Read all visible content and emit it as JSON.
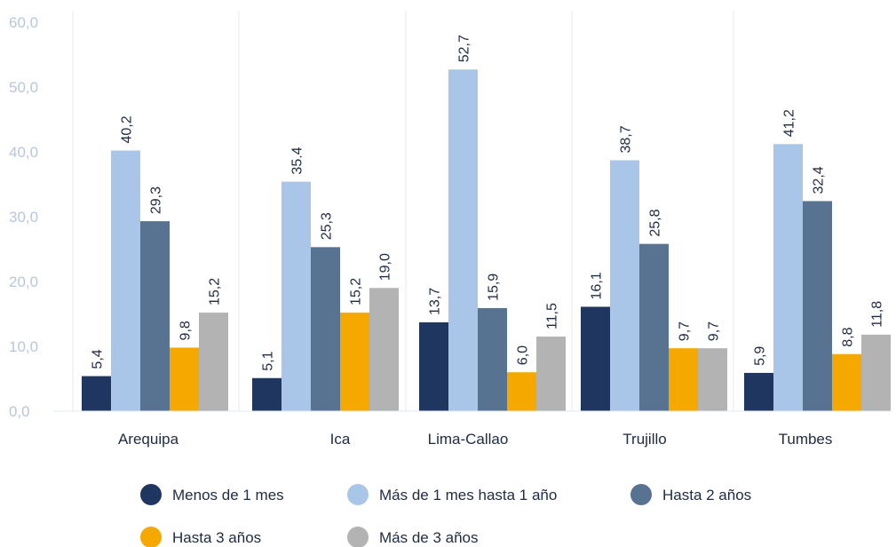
{
  "chart_data": {
    "type": "bar",
    "title": "",
    "xlabel": "",
    "ylabel": "",
    "ylim": [
      0,
      60
    ],
    "yticks": [
      "0,0",
      "10,0",
      "20,0",
      "30,0",
      "40,0",
      "50,0",
      "60,0"
    ],
    "categories": [
      "Arequipa",
      "Ica",
      "Lima-Callao",
      "Trujillo",
      "Tumbes"
    ],
    "series": [
      {
        "name": "Menos de 1 mes",
        "color": "#1f3660",
        "values": [
          5.4,
          5.1,
          13.7,
          16.1,
          5.9
        ],
        "labels": [
          "5,4",
          "5,1",
          "13,7",
          "16,1",
          "5,9"
        ]
      },
      {
        "name": "Más de 1 mes hasta 1 año",
        "color": "#a9c6e8",
        "values": [
          40.2,
          35.4,
          52.7,
          38.7,
          41.2
        ],
        "labels": [
          "40,2",
          "35.4",
          "52,7",
          "38,7",
          "41,2"
        ]
      },
      {
        "name": "Hasta 2 años",
        "color": "#587391",
        "values": [
          29.3,
          25.3,
          15.9,
          25.8,
          32.4
        ],
        "labels": [
          "29,3",
          "25,3",
          "15,9",
          "25,8",
          "32,4"
        ]
      },
      {
        "name": "Hasta 3 años",
        "color": "#f5a800",
        "values": [
          9.8,
          15.2,
          6.0,
          9.7,
          8.8
        ],
        "labels": [
          "9,8",
          "15,2",
          "6,0",
          "9,7",
          "8,8"
        ]
      },
      {
        "name": "Más de 3 años",
        "color": "#b3b3b3",
        "values": [
          15.2,
          19.0,
          11.5,
          9.7,
          11.8
        ],
        "labels": [
          "15,2",
          "19,0",
          "11,5",
          "9,7",
          "11,8"
        ]
      }
    ],
    "grid": true,
    "legend_position": "bottom"
  }
}
